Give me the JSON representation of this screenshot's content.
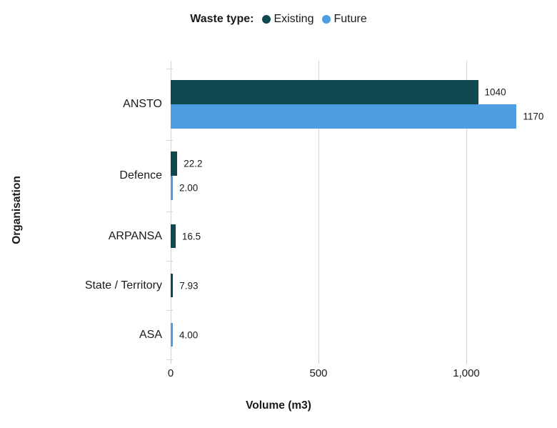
{
  "legend": {
    "title": "Waste type:",
    "items": [
      {
        "label": "Existing",
        "color": "#10484f"
      },
      {
        "label": "Future",
        "color": "#4d9de2"
      }
    ]
  },
  "chart_data": {
    "type": "bar",
    "orientation": "horizontal",
    "title": "",
    "legend_title": "Waste type:",
    "xlabel": "Volume (m3)",
    "ylabel": "Organisation",
    "categories": [
      "ANSTO",
      "Defence",
      "ARPANSA",
      "State / Territory",
      "ASA"
    ],
    "series": [
      {
        "name": "Existing",
        "color": "#10484f",
        "values": [
          1040,
          22.2,
          16.5,
          7.93,
          null
        ],
        "value_labels": [
          "1040",
          "22.2",
          "16.5",
          "7.93",
          null
        ]
      },
      {
        "name": "Future",
        "color": "#4d9de2",
        "values": [
          1170,
          2.0,
          null,
          null,
          4.0
        ],
        "value_labels": [
          "1170",
          "2.00",
          null,
          null,
          "4.00"
        ]
      }
    ],
    "x_ticks": [
      {
        "value": 0,
        "label": "0"
      },
      {
        "value": 500,
        "label": "500"
      },
      {
        "value": 1000,
        "label": "1,000"
      }
    ],
    "xlim": [
      0,
      1260
    ],
    "grid": "vertical",
    "legend_position": "top"
  }
}
